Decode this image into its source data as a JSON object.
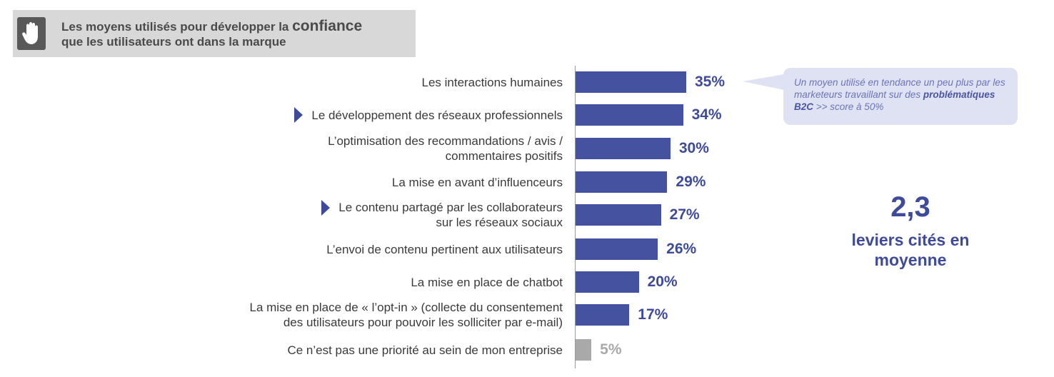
{
  "header": {
    "title_part1": "Les moyens utilisés pour développer la ",
    "title_highlight": "confiance",
    "title_part2": "que les utilisateurs ont dans la marque",
    "icon": "hand-icon"
  },
  "chart_data": {
    "type": "bar",
    "orientation": "horizontal",
    "categories": [
      "Les interactions humaines",
      "Le développement des réseaux professionnels",
      "L’optimisation des recommandations / avis / commentaires positifs",
      "La mise en avant d’influenceurs",
      "Le contenu partagé par les collaborateurs sur les réseaux sociaux",
      "L’envoi de contenu pertinent aux utilisateurs",
      "La mise en place de chatbot",
      "La mise en place de « l’opt-in » (collecte du consentement des utilisateurs pour pouvoir les solliciter par e-mail)",
      "Ce n’est pas une priorité au sein de mon entreprise"
    ],
    "label_lines": [
      [
        "Les interactions humaines"
      ],
      [
        "Le développement des réseaux professionnels"
      ],
      [
        "L’optimisation des recommandations / avis /",
        "commentaires positifs"
      ],
      [
        "La mise en avant d’influenceurs"
      ],
      [
        "Le contenu partagé par les collaborateurs",
        "sur les réseaux sociaux"
      ],
      [
        "L’envoi de contenu pertinent aux utilisateurs"
      ],
      [
        "La mise en place de chatbot"
      ],
      [
        "La mise en place de « l’opt-in » (collecte du consentement",
        "des utilisateurs pour pouvoir les solliciter par e-mail)"
      ],
      [
        "Ce n’est pas une priorité au sein de mon entreprise"
      ]
    ],
    "values": [
      35,
      34,
      30,
      29,
      27,
      26,
      20,
      17,
      5
    ],
    "value_labels": [
      "35%",
      "34%",
      "30%",
      "29%",
      "27%",
      "26%",
      "20%",
      "17%",
      "5%"
    ],
    "highlighted": [
      false,
      true,
      false,
      false,
      true,
      false,
      false,
      false,
      false
    ],
    "grey": [
      false,
      false,
      false,
      false,
      false,
      false,
      false,
      false,
      true
    ],
    "unit": "%",
    "colors": {
      "bar": "#4452a0",
      "bar_grey": "#a9a9a9",
      "marker": "#3e4a9a"
    }
  },
  "callout": {
    "text_part1": "Un moyen utilisé en tendance un peu plus par les marketeurs travaillant sur des ",
    "text_bold": "problématiques B2C",
    "text_part2": " >> score à 50%"
  },
  "average": {
    "value": "2,3",
    "label_line1": "leviers cités en",
    "label_line2": "moyenne"
  }
}
